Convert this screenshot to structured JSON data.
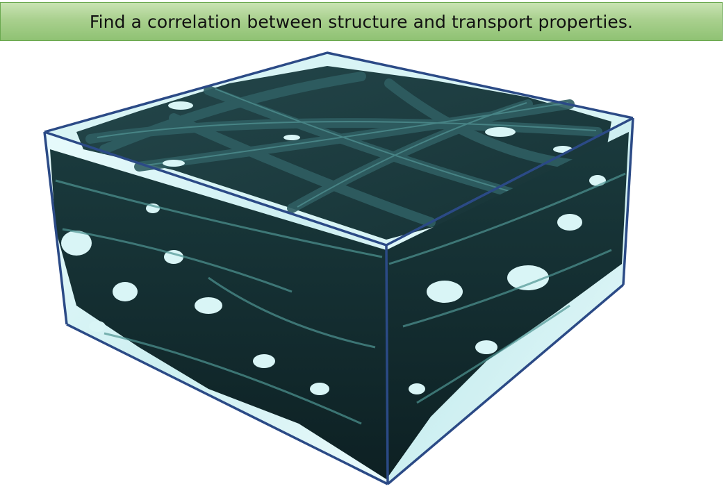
{
  "banner": {
    "text": "Find a correlation between structure and transport properties."
  },
  "figure": {
    "description_icon": "fiber-microstructure-volume",
    "colors": {
      "box_edge": "#2b4a86",
      "fiber_dark": "#0a1c1f",
      "fiber_mid": "#1f4a4f",
      "fiber_light": "#6fb7b4",
      "pore_fill": "#d9f5f6",
      "banner_fill": "#a9d08e"
    }
  }
}
